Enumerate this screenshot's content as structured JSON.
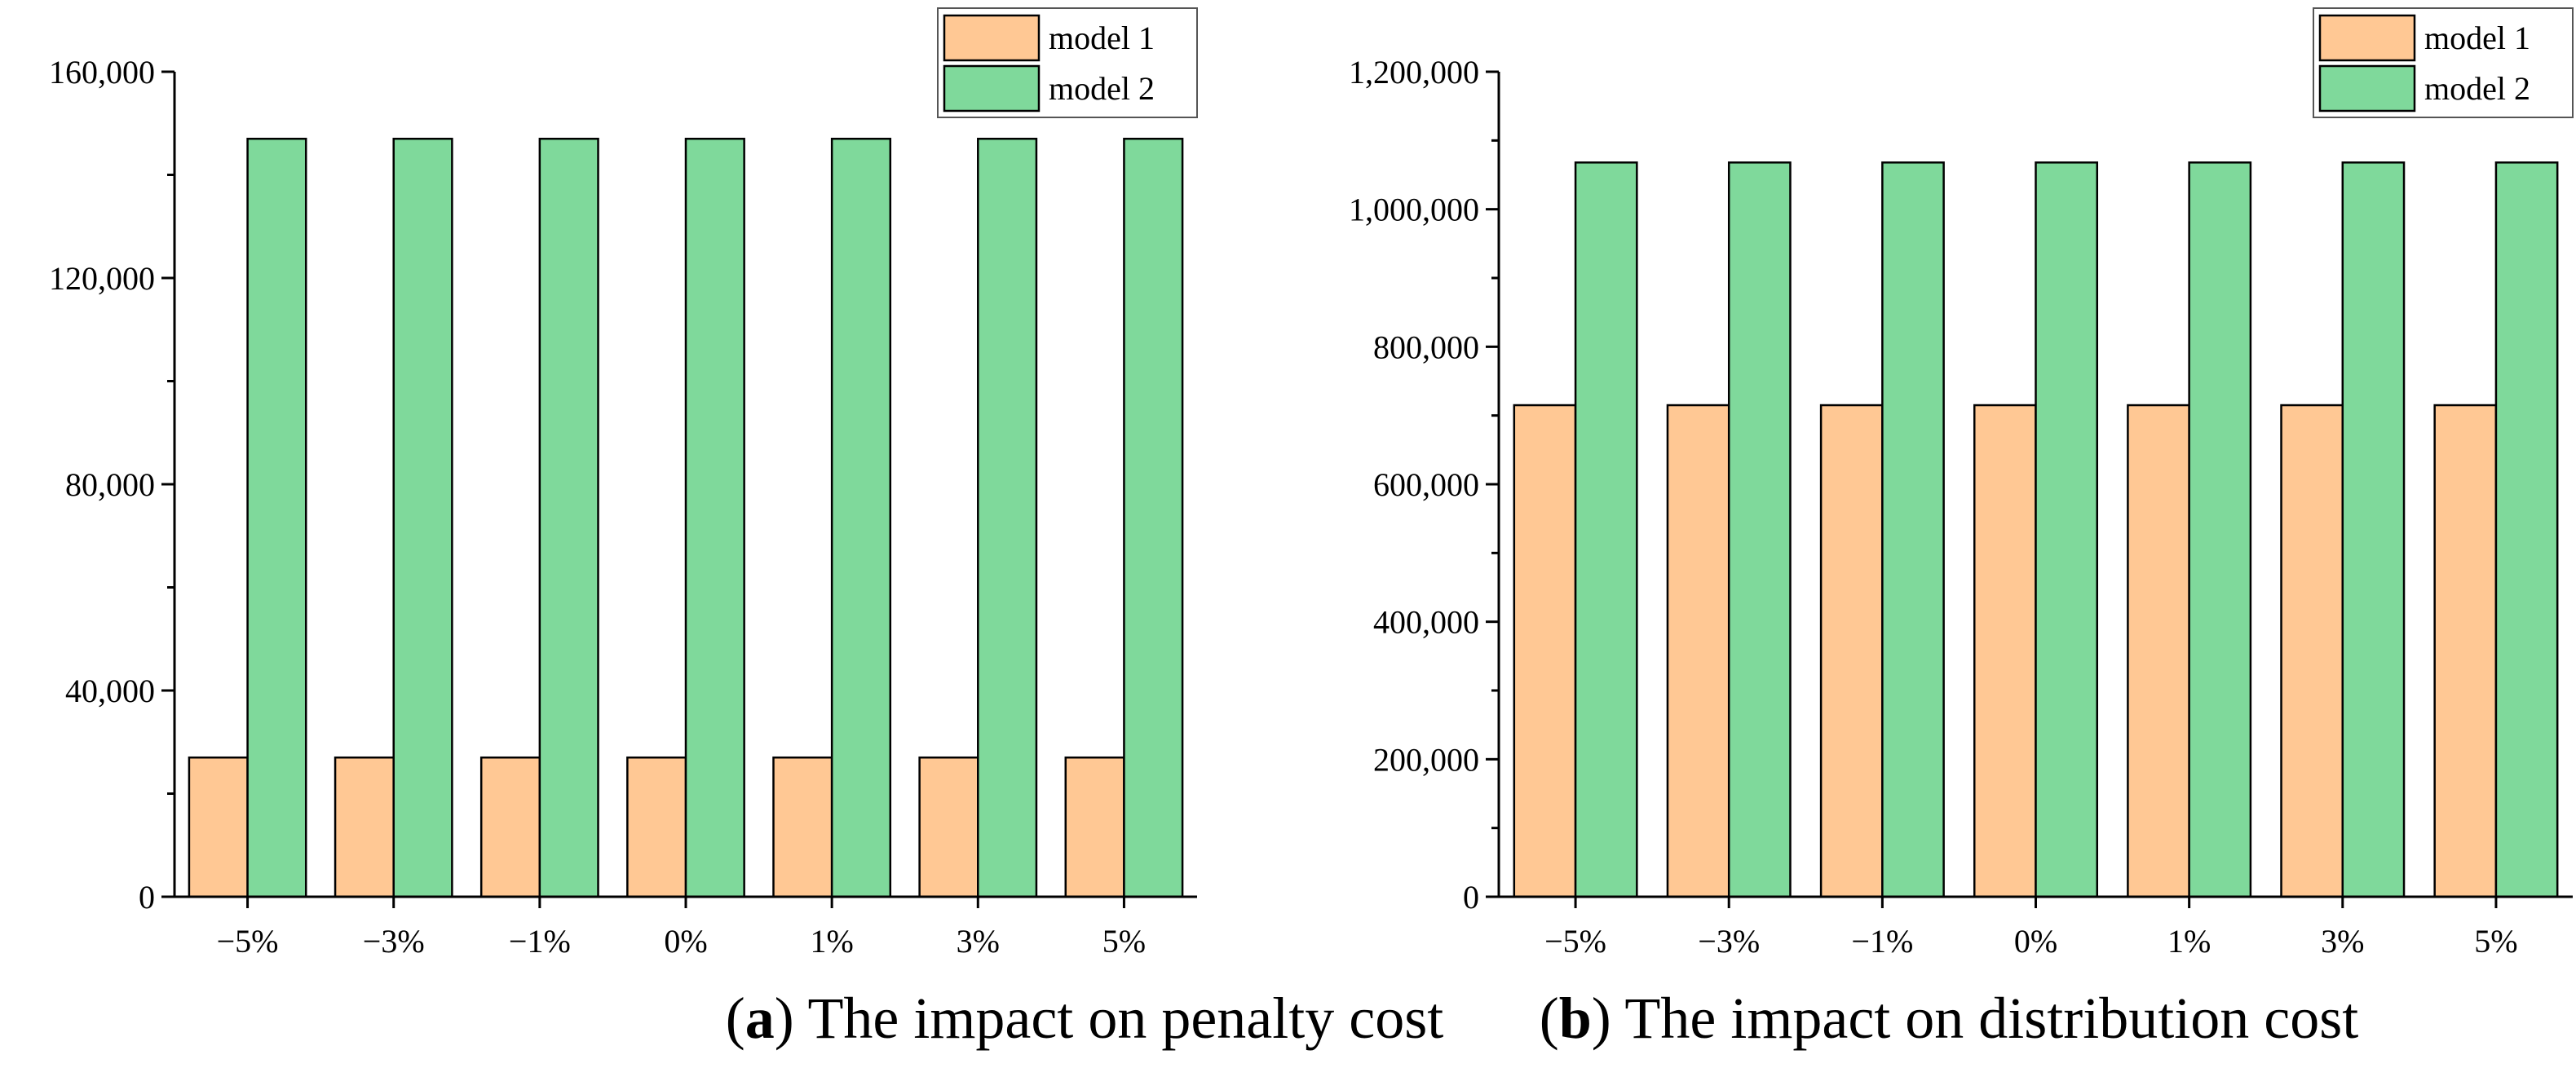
{
  "colors": {
    "model1": "#FFC894",
    "model2": "#7FD99B",
    "axis": "#000000"
  },
  "chart_data": [
    {
      "type": "bar",
      "panel": "a",
      "caption_label": "a",
      "caption_text": " The impact on penalty cost",
      "categories": [
        "−5%",
        "−3%",
        "−1%",
        "0%",
        "1%",
        "3%",
        "5%"
      ],
      "series": [
        {
          "name": "model 1",
          "values": [
            27000,
            27000,
            27000,
            27000,
            27000,
            27000,
            27000
          ]
        },
        {
          "name": "model 2",
          "values": [
            147000,
            147000,
            147000,
            147000,
            147000,
            147000,
            147000
          ]
        }
      ],
      "ylim": [
        0,
        160000
      ],
      "yticks": [
        0,
        40000,
        80000,
        120000,
        160000
      ],
      "ytick_labels": [
        "0",
        "40,000",
        "80,000",
        "120,000",
        "160,000"
      ],
      "xlabel": "",
      "ylabel": "",
      "legend": "top-right"
    },
    {
      "type": "bar",
      "panel": "b",
      "caption_label": "b",
      "caption_text": " The impact on distribution cost",
      "categories": [
        "−5%",
        "−3%",
        "−1%",
        "0%",
        "1%",
        "3%",
        "5%"
      ],
      "series": [
        {
          "name": "model 1",
          "values": [
            715000,
            715000,
            715000,
            715000,
            715000,
            715000,
            715000
          ]
        },
        {
          "name": "model 2",
          "values": [
            1068000,
            1068000,
            1068000,
            1068000,
            1068000,
            1068000,
            1068000
          ]
        }
      ],
      "ylim": [
        0,
        1200000
      ],
      "yticks": [
        0,
        200000,
        400000,
        600000,
        800000,
        1000000,
        1200000
      ],
      "ytick_labels": [
        "0",
        "200,000",
        "400,000",
        "600,000",
        "800,000",
        "1,000,000",
        "1,200,000"
      ],
      "xlabel": "",
      "ylabel": "",
      "legend": "top-right"
    }
  ]
}
